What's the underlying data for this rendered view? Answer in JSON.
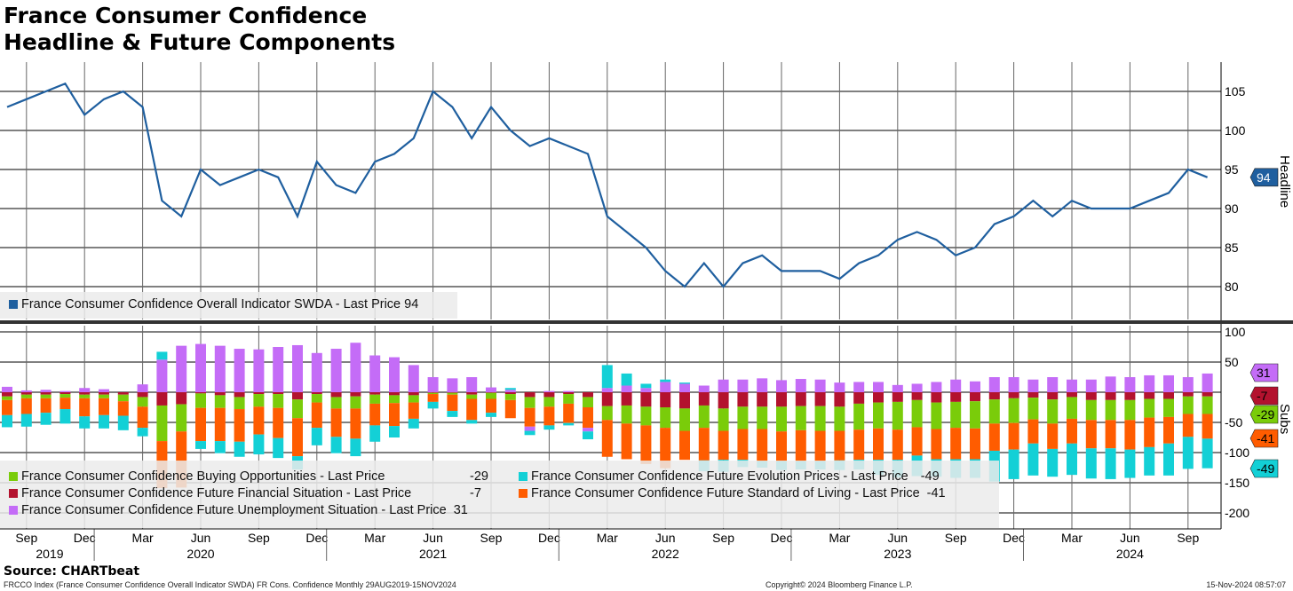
{
  "title_line1": "France Consumer Confidence",
  "title_line2": "Headline & Future Components",
  "source": "Source: CHARTbeat",
  "footer_left": "FRCCO Index (France Consumer Confidence Overall Indicator SWDA) FR Cons. Confidence  Monthly 29AUG2019-15NOV2024",
  "footer_center": "Copyright© 2024 Bloomberg Finance L.P.",
  "footer_right": "15-Nov-2024 08:57:07",
  "colors": {
    "headline": "#1f5f9f",
    "buying": "#7acc0a",
    "financial": "#b3122e",
    "unemployment": "#c46cf7",
    "prices": "#13d0d6",
    "living": "#ff5c00"
  },
  "chart_data": [
    {
      "type": "line",
      "title": "Headline",
      "ylabel": "Headline",
      "ylim": [
        76,
        109
      ],
      "yticks": [
        80,
        85,
        90,
        95,
        100,
        105
      ],
      "x_start": "2019-08",
      "legend": "France Consumer Confidence Overall Indicator SWDA - Last Price 94",
      "last_value": "94",
      "series": [
        {
          "name": "France Consumer Confidence Overall Indicator SWDA",
          "values": [
            103,
            104,
            105,
            106,
            102,
            104,
            105,
            103,
            91,
            89,
            95,
            93,
            94,
            95,
            94,
            89,
            96,
            93,
            92,
            96,
            97,
            99,
            105,
            103,
            99,
            103,
            100,
            98,
            99,
            98,
            97,
            89,
            87,
            85,
            82,
            80,
            83,
            80,
            83,
            84,
            82,
            82,
            82,
            81,
            83,
            84,
            86,
            87,
            86,
            84,
            85,
            88,
            89,
            91,
            89,
            91,
            90,
            90,
            90,
            91,
            92,
            95,
            94
          ]
        }
      ]
    },
    {
      "type": "bar",
      "stacked": true,
      "ylabel": "Subs",
      "ylim": [
        -210,
        110
      ],
      "yticks": [
        100,
        50,
        -50,
        -100,
        -150,
        -200
      ],
      "x_start": "2019-08",
      "series": [
        {
          "key": "buying",
          "name": "France Consumer Confidence Buying Opportunities - Last Price",
          "last": "-29",
          "values": [
            -6,
            -6,
            -6,
            -6,
            -6,
            -6,
            -11,
            -16,
            -59,
            -45,
            -24,
            -21,
            -20,
            -21,
            -23,
            -31,
            -14,
            -19,
            -20,
            -15,
            -13,
            -12,
            -2,
            -3,
            -7,
            -10,
            -10,
            -18,
            -16,
            -16,
            -17,
            -23,
            -30,
            -31,
            -34,
            -37,
            -37,
            -37,
            -37,
            -37,
            -41,
            -40,
            -41,
            -40,
            -43,
            -43,
            -46,
            -45,
            -44,
            -43,
            -45,
            -40,
            -41,
            -36,
            -40,
            -36,
            -33,
            -33,
            -33,
            -31,
            -30,
            -29,
            -29
          ]
        },
        {
          "key": "prices",
          "name": "France Consumer Confidence Future Evolution Prices - Last Price",
          "last": "-49",
          "values": [
            -20,
            -21,
            -20,
            -24,
            -20,
            -22,
            -24,
            -14,
            13,
            0,
            -13,
            -20,
            -25,
            -33,
            -33,
            -22,
            -29,
            -27,
            -29,
            -27,
            -19,
            -16,
            -11,
            -10,
            -6,
            -7,
            3,
            -7,
            -7,
            -4,
            -13,
            38,
            20,
            7,
            4,
            2,
            -18,
            -20,
            -12,
            -11,
            -15,
            -14,
            -14,
            -16,
            -16,
            -25,
            -29,
            -34,
            -29,
            -31,
            -31,
            -51,
            -49,
            -53,
            -46,
            -52,
            -50,
            -51,
            -47,
            -47,
            -53,
            -53,
            -49
          ]
        },
        {
          "key": "financial",
          "name": "France Consumer Confidence Future Financial Situation - Last Price",
          "last": "-7",
          "values": [
            -7,
            -4,
            -4,
            -3,
            -4,
            -4,
            -4,
            -8,
            -22,
            -20,
            -2,
            -5,
            -8,
            -3,
            -3,
            -12,
            -3,
            -8,
            -7,
            -4,
            -5,
            -5,
            -1,
            -1,
            -4,
            -1,
            -3,
            -8,
            -8,
            -3,
            -8,
            -23,
            -22,
            -24,
            -25,
            -27,
            -22,
            -27,
            -24,
            -24,
            -24,
            -23,
            -23,
            -24,
            -19,
            -17,
            -16,
            -13,
            -17,
            -16,
            -15,
            -12,
            -10,
            -9,
            -12,
            -8,
            -13,
            -13,
            -13,
            -11,
            -11,
            -7,
            -7
          ]
        },
        {
          "key": "living",
          "name": "France Consumer Confidence Future Standard of Living - Last Price",
          "last": "-41",
          "values": [
            -25,
            -26,
            -24,
            -19,
            -30,
            -28,
            -24,
            -35,
            -78,
            -93,
            -55,
            -55,
            -54,
            -46,
            -50,
            -63,
            -42,
            -47,
            -50,
            -36,
            -38,
            -27,
            -13,
            -27,
            -35,
            -23,
            -30,
            -31,
            -31,
            -32,
            -34,
            -61,
            -59,
            -64,
            -67,
            -48,
            -54,
            -48,
            -51,
            -53,
            -49,
            -51,
            -50,
            -49,
            -50,
            -52,
            -50,
            -47,
            -50,
            -52,
            -51,
            -45,
            -44,
            -40,
            -42,
            -41,
            -47,
            -47,
            -49,
            -49,
            -44,
            -38,
            -41
          ]
        },
        {
          "key": "unemployment",
          "name": "France Consumer Confidence Future Unemployment Situation - Last Price",
          "last": "31",
          "values": [
            9,
            3,
            4,
            2,
            7,
            5,
            0,
            13,
            54,
            77,
            80,
            77,
            72,
            71,
            75,
            78,
            65,
            72,
            82,
            61,
            58,
            45,
            25,
            23,
            25,
            8,
            4,
            -7,
            2,
            2,
            -6,
            7,
            11,
            7,
            17,
            14,
            11,
            21,
            21,
            23,
            20,
            22,
            21,
            16,
            17,
            17,
            12,
            14,
            17,
            21,
            18,
            25,
            25,
            21,
            25,
            21,
            21,
            26,
            25,
            28,
            28,
            25,
            31
          ]
        }
      ]
    }
  ],
  "x_axis": {
    "months": [
      {
        "label": "Sep",
        "i": 1
      },
      {
        "label": "Dec",
        "i": 4
      },
      {
        "label": "Mar",
        "i": 7
      },
      {
        "label": "Jun",
        "i": 10
      },
      {
        "label": "Sep",
        "i": 13
      },
      {
        "label": "Dec",
        "i": 16
      },
      {
        "label": "Mar",
        "i": 19
      },
      {
        "label": "Jun",
        "i": 22
      },
      {
        "label": "Sep",
        "i": 25
      },
      {
        "label": "Dec",
        "i": 28
      },
      {
        "label": "Mar",
        "i": 31
      },
      {
        "label": "Jun",
        "i": 34
      },
      {
        "label": "Sep",
        "i": 37
      },
      {
        "label": "Dec",
        "i": 40
      },
      {
        "label": "Mar",
        "i": 43
      },
      {
        "label": "Jun",
        "i": 46
      },
      {
        "label": "Sep",
        "i": 49
      },
      {
        "label": "Dec",
        "i": 52
      },
      {
        "label": "Mar",
        "i": 55
      },
      {
        "label": "Jun",
        "i": 58
      },
      {
        "label": "Sep",
        "i": 61
      }
    ],
    "years": [
      {
        "label": "2019",
        "i": 2.2
      },
      {
        "label": "2020",
        "i": 10
      },
      {
        "label": "2021",
        "i": 22
      },
      {
        "label": "2022",
        "i": 34
      },
      {
        "label": "2023",
        "i": 46
      },
      {
        "label": "2024",
        "i": 58
      }
    ]
  }
}
